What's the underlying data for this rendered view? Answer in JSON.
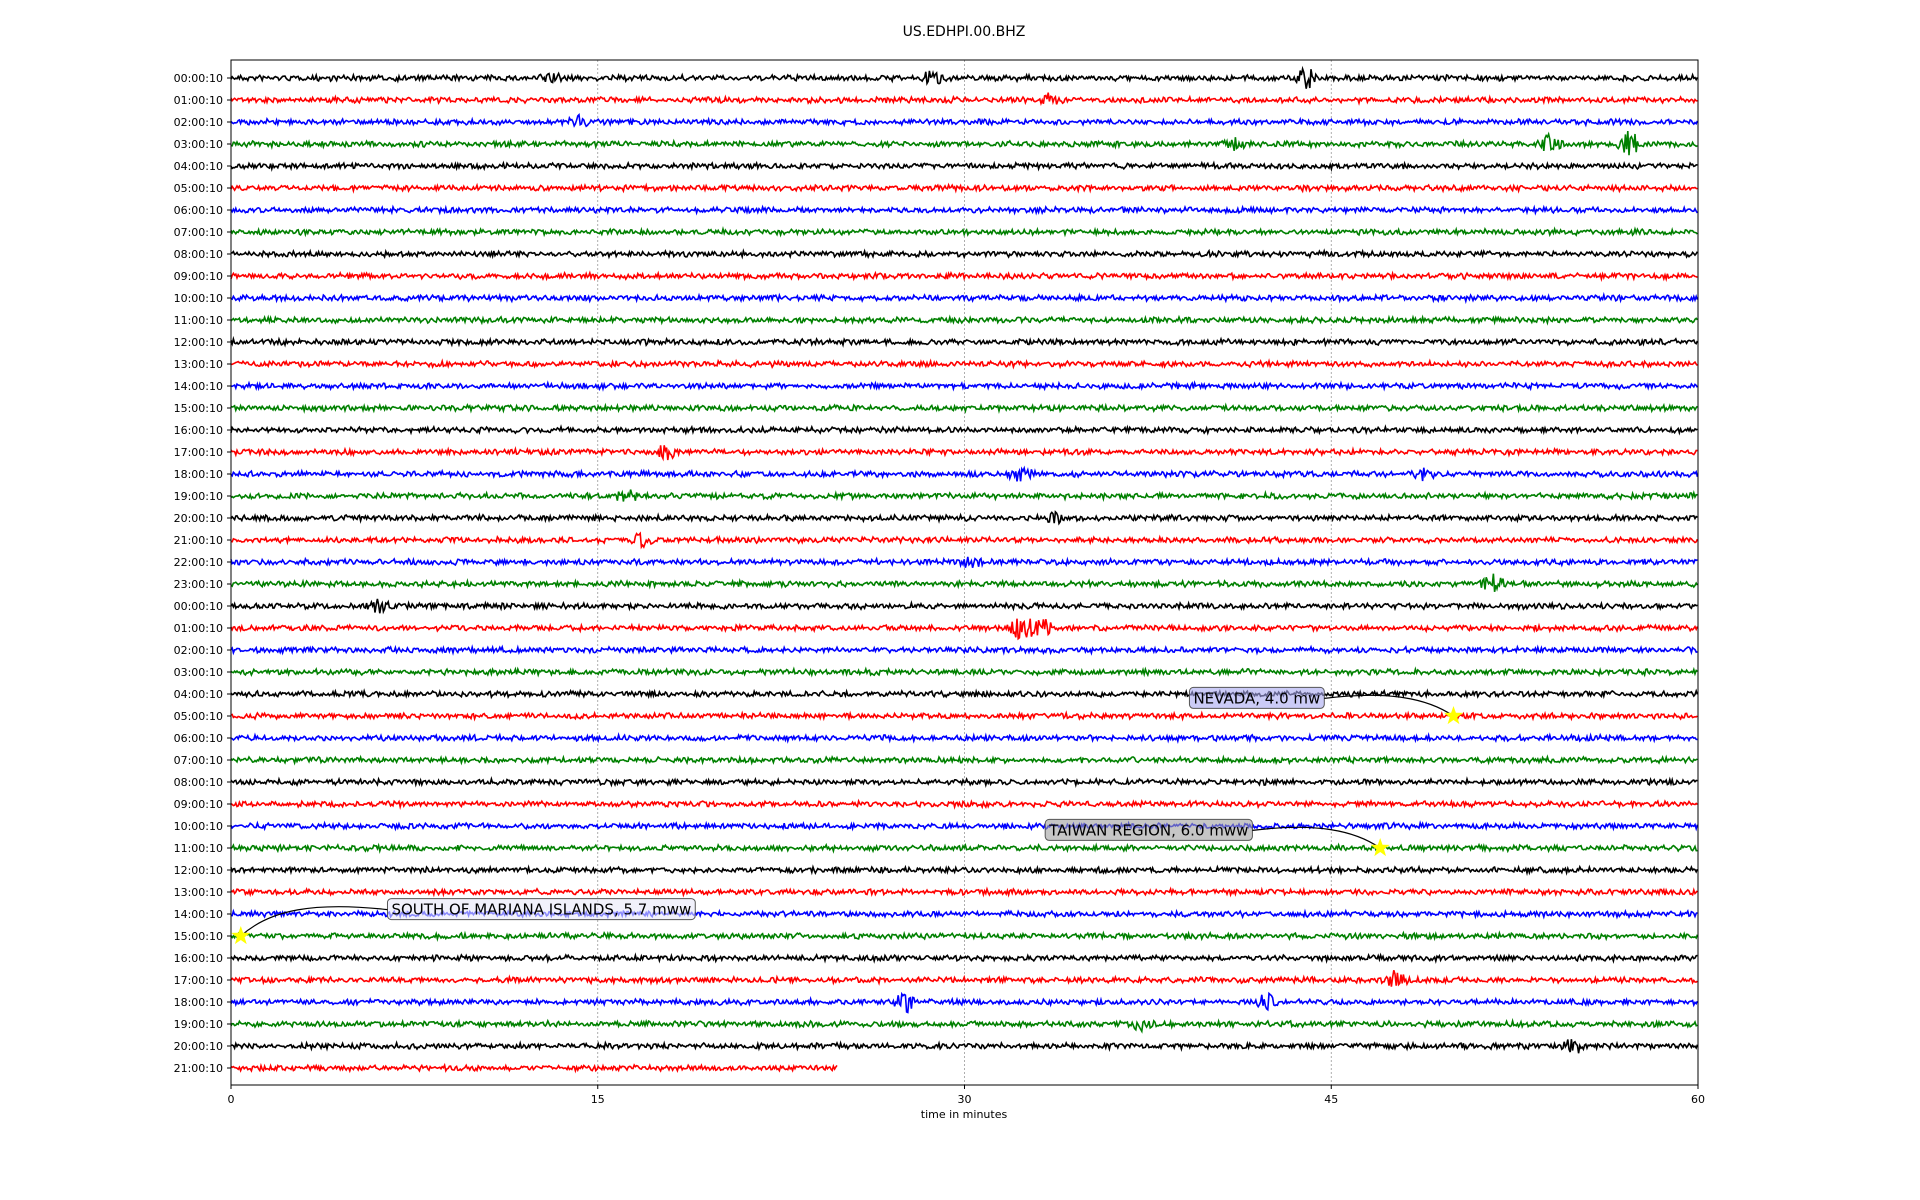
{
  "chart_data": {
    "type": "line",
    "title": "US.EDHPI.00.BHZ",
    "xlabel": "time in minutes",
    "ylabel": "",
    "xlim": [
      0,
      60
    ],
    "xticks": [
      "0",
      "15",
      "30",
      "45",
      "60"
    ],
    "xtick_values": [
      0,
      15,
      30,
      45,
      60
    ],
    "grid": "vertical dotted at x ticks",
    "colors": [
      "#000000",
      "#ff0000",
      "#0000ff",
      "#008000"
    ],
    "row_labels": [
      "00:00:10",
      "01:00:10",
      "02:00:10",
      "03:00:10",
      "04:00:10",
      "05:00:10",
      "06:00:10",
      "07:00:10",
      "08:00:10",
      "09:00:10",
      "10:00:10",
      "11:00:10",
      "12:00:10",
      "13:00:10",
      "14:00:10",
      "15:00:10",
      "16:00:10",
      "17:00:10",
      "18:00:10",
      "19:00:10",
      "20:00:10",
      "21:00:10",
      "22:00:10",
      "23:00:10",
      "00:00:10",
      "01:00:10",
      "02:00:10",
      "03:00:10",
      "04:00:10",
      "05:00:10",
      "06:00:10",
      "07:00:10",
      "08:00:10",
      "09:00:10",
      "10:00:10",
      "11:00:10",
      "12:00:10",
      "13:00:10",
      "14:00:10",
      "15:00:10",
      "16:00:10",
      "17:00:10",
      "18:00:10",
      "19:00:10",
      "20:00:10",
      "21:00:10"
    ],
    "last_row_end_minute": 24.8,
    "events": [
      {
        "row": 0,
        "minute": 44,
        "amp": 10
      },
      {
        "row": 0,
        "minute": 28.7,
        "amp": 7
      },
      {
        "row": 0,
        "minute": 13,
        "amp": 5
      },
      {
        "row": 1,
        "minute": 33.5,
        "amp": 5
      },
      {
        "row": 2,
        "minute": 14.2,
        "amp": 5
      },
      {
        "row": 3,
        "minute": 54,
        "amp": 9
      },
      {
        "row": 3,
        "minute": 57.2,
        "amp": 13
      },
      {
        "row": 3,
        "minute": 41,
        "amp": 5
      },
      {
        "row": 17,
        "minute": 17.8,
        "amp": 9
      },
      {
        "row": 18,
        "minute": 32.3,
        "amp": 6
      },
      {
        "row": 18,
        "minute": 48.8,
        "amp": 6
      },
      {
        "row": 19,
        "minute": 16.2,
        "amp": 6
      },
      {
        "row": 20,
        "minute": 33.7,
        "amp": 7
      },
      {
        "row": 21,
        "minute": 16.8,
        "amp": 6
      },
      {
        "row": 22,
        "minute": 30.3,
        "amp": 6
      },
      {
        "row": 23,
        "minute": 51.6,
        "amp": 9
      },
      {
        "row": 24,
        "minute": 6.1,
        "amp": 6
      },
      {
        "row": 25,
        "minute": 32.3,
        "amp": 11
      },
      {
        "row": 25,
        "minute": 33.1,
        "amp": 12
      },
      {
        "row": 41,
        "minute": 47.6,
        "amp": 8
      },
      {
        "row": 42,
        "minute": 27.6,
        "amp": 10
      },
      {
        "row": 42,
        "minute": 42.3,
        "amp": 9
      },
      {
        "row": 43,
        "minute": 37.3,
        "amp": 6
      },
      {
        "row": 44,
        "minute": 54.9,
        "amp": 8
      }
    ],
    "annotations": [
      {
        "text": "NEVADA, 4.0 mw",
        "row": 29,
        "minute": 50.0,
        "box_color": "#a8a8f0",
        "text_minute": 39.2,
        "text_row": 28.2
      },
      {
        "text": "TAIWAN REGION, 6.0 mww",
        "row": 35,
        "minute": 47.0,
        "box_color": "#a0a0a0",
        "text_minute": 33.3,
        "text_row": 34.2
      },
      {
        "text": "SOUTH OF MARIANA ISLANDS, 5.7 mww",
        "row": 39,
        "minute": 0.4,
        "box_color": "#e8e8f8",
        "text_minute": 6.4,
        "text_row": 37.8
      }
    ]
  }
}
